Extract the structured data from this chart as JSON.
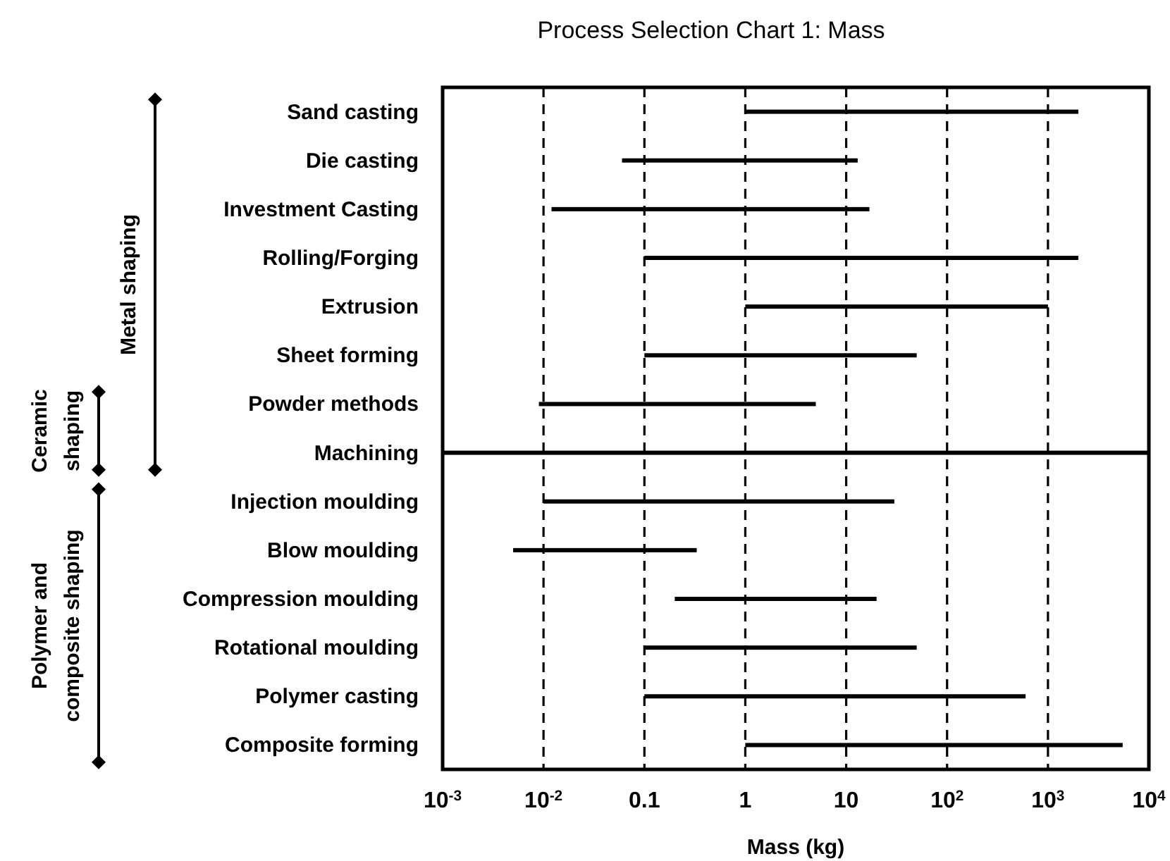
{
  "chart_data": {
    "type": "bar",
    "orientation": "horizontal",
    "title": "Process Selection Chart 1:  Mass",
    "xlabel": "Mass  (kg)",
    "categories": [
      "Sand casting",
      "Die casting",
      "Investment Casting",
      "Rolling/Forging",
      "Extrusion",
      "Sheet forming",
      "Powder methods",
      "Machining",
      "Injection moulding",
      "Blow moulding",
      "Compression moulding",
      "Rotational moulding",
      "Polymer casting",
      "Composite forming"
    ],
    "base": [
      1,
      0.06,
      0.012,
      0.1,
      1,
      0.1,
      0.009,
      0.001,
      0.01,
      0.005,
      0.2,
      0.1,
      0.1,
      1
    ],
    "values": [
      1999,
      12.94,
      16.988,
      1999.9,
      999,
      49.9,
      4.991,
      9999.999,
      29.99,
      0.325,
      19.8,
      49.9,
      599.9,
      5499
    ],
    "color": "#000000",
    "log": "x",
    "grid": "x",
    "xlim": [
      0.001,
      10000
    ],
    "xticks": [
      {
        "value": 0.001,
        "label": "10$^{-3}$"
      },
      {
        "value": 0.01,
        "label": "10$^{-2}$"
      },
      0.1,
      1,
      10,
      {
        "value": 100,
        "label": "10$^{2}$"
      },
      {
        "value": 1000,
        "label": "10$^{3}$"
      },
      {
        "value": 10000,
        "label": "10$^{4}$"
      }
    ],
    "annotations": [
      "Metal shaping",
      "Ceramic shaping",
      "Polymer and composite shaping"
    ]
  }
}
